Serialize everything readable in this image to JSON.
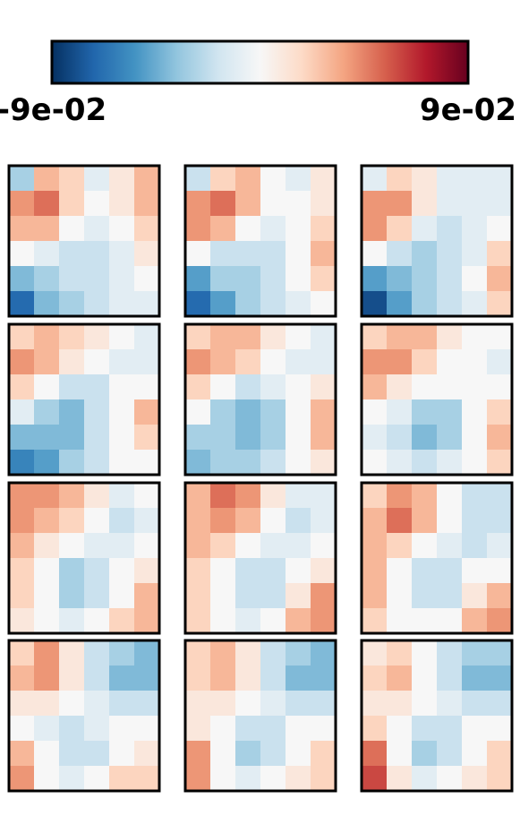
{
  "chart_data": {
    "type": "heatmap",
    "colorscale": [
      "#053061",
      "#2166ac",
      "#4393c3",
      "#92c5de",
      "#d1e5f0",
      "#f7f7f7",
      "#fddbc7",
      "#f4a582",
      "#d6604d",
      "#b2182b",
      "#67001f"
    ],
    "clim": [
      -0.09,
      0.09
    ],
    "cticks": [
      {
        "value": -0.09,
        "label": "-9e-02"
      },
      {
        "value": 0.09,
        "label": "9e-02"
      }
    ],
    "panels": [
      [
        [
          -0.03,
          0.03,
          0.02,
          -0.01,
          0.01,
          0.03
        ],
        [
          0.04,
          0.05,
          0.02,
          0.0,
          0.01,
          0.03
        ],
        [
          0.03,
          0.03,
          0.0,
          -0.01,
          0.0,
          0.02
        ],
        [
          0.0,
          -0.01,
          -0.02,
          -0.02,
          -0.01,
          0.01
        ],
        [
          -0.04,
          -0.03,
          -0.02,
          -0.02,
          -0.01,
          0.0
        ],
        [
          -0.07,
          -0.04,
          -0.03,
          -0.02,
          -0.01,
          -0.01
        ]
      ],
      [
        [
          -0.02,
          0.02,
          0.03,
          0.0,
          -0.01,
          0.01
        ],
        [
          0.04,
          0.05,
          0.03,
          0.0,
          0.0,
          0.01
        ],
        [
          0.04,
          0.03,
          0.0,
          -0.01,
          0.0,
          0.02
        ],
        [
          0.0,
          -0.02,
          -0.02,
          -0.02,
          0.0,
          0.03
        ],
        [
          -0.05,
          -0.03,
          -0.03,
          -0.02,
          0.0,
          0.02
        ],
        [
          -0.07,
          -0.05,
          -0.03,
          -0.02,
          -0.01,
          0.0
        ]
      ],
      [
        [
          -0.01,
          0.02,
          0.01,
          -0.01,
          -0.01,
          -0.01
        ],
        [
          0.04,
          0.04,
          0.01,
          -0.01,
          -0.01,
          -0.01
        ],
        [
          0.04,
          0.02,
          -0.01,
          -0.02,
          -0.01,
          0.0
        ],
        [
          0.0,
          -0.02,
          -0.03,
          -0.02,
          -0.01,
          0.02
        ],
        [
          -0.05,
          -0.04,
          -0.03,
          -0.02,
          0.0,
          0.03
        ],
        [
          -0.08,
          -0.05,
          -0.03,
          -0.02,
          -0.01,
          0.02
        ]
      ],
      [
        [
          0.02,
          0.03,
          0.02,
          0.01,
          0.0,
          -0.01
        ],
        [
          0.04,
          0.03,
          0.01,
          0.0,
          -0.01,
          -0.01
        ],
        [
          0.02,
          0.0,
          -0.02,
          -0.02,
          0.0,
          0.0
        ],
        [
          -0.01,
          -0.03,
          -0.04,
          -0.02,
          0.0,
          0.03
        ],
        [
          -0.04,
          -0.04,
          -0.04,
          -0.02,
          0.0,
          0.02
        ],
        [
          -0.06,
          -0.05,
          -0.03,
          -0.02,
          0.0,
          0.0
        ]
      ],
      [
        [
          0.02,
          0.03,
          0.03,
          0.01,
          0.0,
          -0.01
        ],
        [
          0.04,
          0.03,
          0.02,
          0.0,
          -0.01,
          -0.01
        ],
        [
          0.02,
          0.0,
          -0.02,
          -0.01,
          0.0,
          0.01
        ],
        [
          0.0,
          -0.03,
          -0.04,
          -0.03,
          0.0,
          0.03
        ],
        [
          -0.03,
          -0.03,
          -0.04,
          -0.03,
          0.0,
          0.03
        ],
        [
          -0.04,
          -0.03,
          -0.03,
          -0.02,
          0.0,
          0.01
        ]
      ],
      [
        [
          0.02,
          0.03,
          0.03,
          0.01,
          0.0,
          0.0
        ],
        [
          0.04,
          0.04,
          0.02,
          0.0,
          0.0,
          -0.01
        ],
        [
          0.03,
          0.01,
          0.0,
          0.0,
          0.0,
          0.0
        ],
        [
          0.0,
          -0.01,
          -0.03,
          -0.03,
          0.0,
          0.02
        ],
        [
          -0.01,
          -0.02,
          -0.04,
          -0.03,
          0.0,
          0.03
        ],
        [
          0.0,
          -0.01,
          -0.02,
          -0.01,
          0.0,
          0.02
        ]
      ],
      [
        [
          0.04,
          0.04,
          0.03,
          0.01,
          -0.01,
          0.0
        ],
        [
          0.04,
          0.03,
          0.02,
          0.0,
          -0.02,
          -0.01
        ],
        [
          0.03,
          0.01,
          0.0,
          -0.01,
          -0.01,
          0.0
        ],
        [
          0.02,
          0.0,
          -0.03,
          -0.02,
          0.0,
          0.01
        ],
        [
          0.02,
          0.0,
          -0.03,
          -0.02,
          0.0,
          0.03
        ],
        [
          0.01,
          0.0,
          -0.01,
          0.0,
          0.02,
          0.03
        ]
      ],
      [
        [
          0.03,
          0.05,
          0.04,
          0.01,
          -0.01,
          -0.01
        ],
        [
          0.03,
          0.04,
          0.03,
          0.0,
          -0.02,
          -0.01
        ],
        [
          0.03,
          0.02,
          0.0,
          -0.01,
          -0.01,
          0.0
        ],
        [
          0.02,
          0.0,
          -0.02,
          -0.02,
          0.0,
          0.01
        ],
        [
          0.02,
          0.0,
          -0.02,
          -0.02,
          0.01,
          0.04
        ],
        [
          0.02,
          0.0,
          -0.01,
          0.0,
          0.03,
          0.04
        ]
      ],
      [
        [
          0.02,
          0.04,
          0.03,
          0.0,
          -0.02,
          -0.02
        ],
        [
          0.03,
          0.05,
          0.03,
          0.0,
          -0.02,
          -0.02
        ],
        [
          0.03,
          0.02,
          0.0,
          -0.01,
          -0.02,
          -0.01
        ],
        [
          0.03,
          0.0,
          -0.02,
          -0.02,
          0.0,
          0.0
        ],
        [
          0.03,
          0.0,
          -0.02,
          -0.02,
          0.01,
          0.03
        ],
        [
          0.02,
          0.0,
          0.0,
          0.0,
          0.03,
          0.04
        ]
      ],
      [
        [
          0.02,
          0.04,
          0.01,
          -0.02,
          -0.03,
          -0.04
        ],
        [
          0.03,
          0.04,
          0.01,
          -0.02,
          -0.04,
          -0.04
        ],
        [
          0.01,
          0.01,
          0.0,
          -0.01,
          -0.02,
          -0.02
        ],
        [
          0.0,
          -0.01,
          -0.02,
          -0.01,
          0.0,
          0.0
        ],
        [
          0.03,
          0.0,
          -0.02,
          -0.02,
          0.0,
          0.01
        ],
        [
          0.04,
          0.0,
          -0.01,
          0.0,
          0.02,
          0.02
        ]
      ],
      [
        [
          0.02,
          0.03,
          0.01,
          -0.02,
          -0.03,
          -0.04
        ],
        [
          0.02,
          0.03,
          0.01,
          -0.02,
          -0.04,
          -0.04
        ],
        [
          0.01,
          0.01,
          0.0,
          -0.01,
          -0.02,
          -0.02
        ],
        [
          0.01,
          0.0,
          -0.02,
          -0.02,
          0.0,
          0.0
        ],
        [
          0.04,
          0.0,
          -0.03,
          -0.02,
          0.0,
          0.02
        ],
        [
          0.04,
          0.0,
          -0.01,
          0.0,
          0.01,
          0.02
        ]
      ],
      [
        [
          0.01,
          0.02,
          0.0,
          -0.02,
          -0.03,
          -0.03
        ],
        [
          0.02,
          0.03,
          0.0,
          -0.02,
          -0.04,
          -0.04
        ],
        [
          0.01,
          0.01,
          0.0,
          -0.01,
          -0.02,
          -0.02
        ],
        [
          0.02,
          0.0,
          -0.02,
          -0.02,
          0.0,
          0.0
        ],
        [
          0.05,
          0.0,
          -0.03,
          -0.02,
          0.0,
          0.02
        ],
        [
          0.06,
          0.01,
          -0.01,
          0.0,
          0.01,
          0.02
        ]
      ]
    ]
  }
}
